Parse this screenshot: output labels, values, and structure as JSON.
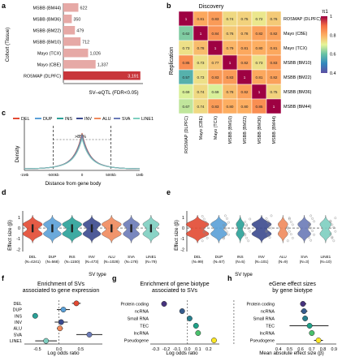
{
  "panels": {
    "a": "a",
    "b": "b",
    "c": "c",
    "d": "d",
    "e": "e",
    "f": "f",
    "g": "g",
    "h": "h"
  },
  "chart_data": [
    {
      "id": "a",
      "type": "bar",
      "orientation": "horizontal",
      "ylabel": "Cohort (Tissue)",
      "xlabel": "SV–eQTL (FDR<0.05)",
      "categories": [
        "MSBB (BM44)",
        "MSBB (BM36)",
        "MSBB (BM22)",
        "MSBB (BM10)",
        "Mayo (TCX)",
        "Mayo (CBE)",
        "ROSMAP (DLPFC)"
      ],
      "values": [
        622,
        350,
        479,
        712,
        1026,
        1337,
        3191
      ],
      "value_labels": [
        "622",
        "350",
        "479",
        "712",
        "1,026",
        "1,337",
        "3,191"
      ],
      "colors": [
        "#e6a9a6",
        "#e6a9a6",
        "#e6a9a6",
        "#e6a9a6",
        "#e6a9a6",
        "#e6a9a6",
        "#c8363b"
      ]
    },
    {
      "id": "b",
      "type": "heatmap",
      "title": "Discovery",
      "ylabel": "Replication",
      "rows": [
        "ROSMAP (DLPFC)",
        "Mayo (CBE)",
        "Mayo (TCX)",
        "MSBB (BM10)",
        "MSBB (BM22)",
        "MSBB (BM36)",
        "MSBB (BM44)"
      ],
      "cols": [
        "ROSMAP (DLPFC)",
        "Mayo (CBE)",
        "Mayo (TCX)",
        "MSBB (BM10)",
        "MSBB (BM22)",
        "MSBB (BM36)",
        "MSBB (BM44)"
      ],
      "values": [
        [
          1,
          0.81,
          0.83,
          0.74,
          0.75,
          0.72,
          0.76
        ],
        [
          0.62,
          1,
          0.84,
          0.76,
          0.78,
          0.82,
          0.82
        ],
        [
          0.73,
          0.78,
          1,
          0.79,
          0.81,
          0.8,
          0.81
        ],
        [
          0.85,
          0.73,
          0.77,
          1,
          0.82,
          0.73,
          0.83
        ],
        [
          0.57,
          0.73,
          0.83,
          0.83,
          1,
          0.81,
          0.82
        ],
        [
          0.69,
          0.74,
          0.69,
          0.78,
          0.82,
          1,
          0.75
        ],
        [
          0.67,
          0.74,
          0.83,
          0.8,
          0.8,
          0.85,
          1
        ]
      ],
      "colorbar": {
        "label": "π1",
        "ticks": [
          "1",
          "0.8",
          "0.6",
          "0.4"
        ]
      }
    },
    {
      "id": "c",
      "type": "line",
      "ylabel": "Density",
      "xlabel": "Distance from gene body",
      "legend": [
        "DEL",
        "DUP",
        "INS",
        "INV",
        "ALU",
        "SVA",
        "LINE1"
      ],
      "colors": [
        "#e34a33",
        "#5aa0d8",
        "#2aa198",
        "#3b4a8f",
        "#f08a5d",
        "#6b7bb8",
        "#7ecfc0"
      ],
      "xticks": [
        "-1Mb",
        "-500kb",
        "0",
        "500kb",
        "1Mb"
      ],
      "annotation": ">85%"
    },
    {
      "id": "d",
      "type": "violin",
      "ylabel": "Effect size (β)",
      "xlabel": "SV type",
      "categories": [
        "DEL",
        "DUP",
        "INS",
        "INV",
        "ALU",
        "SVA",
        "LINE1"
      ],
      "category_labels": [
        "DEL\n(N=4241)",
        "DUP\n(N=568)",
        "INS\n(N=1150)",
        "INV\n(N=473)",
        "ALU\n(N=1028)",
        "SVA\n(N=178)",
        "LINE1\n(N=79)"
      ],
      "yticks": [
        "1",
        "0",
        "-1",
        "-2"
      ],
      "ylim": [
        -2,
        1.5
      ]
    },
    {
      "id": "e",
      "type": "violin",
      "ylabel": "Effect size (β)",
      "xlabel": "SV type",
      "categories": [
        "DEL",
        "DUP",
        "INS",
        "INV",
        "ALU",
        "SVA",
        "LINE1"
      ],
      "category_labels": [
        "DEL\n(N=99)",
        "DUP\n(N=57)",
        "INS\n(N=5)",
        "INV\n(N=101)",
        "ALU\n(N=9)",
        "SVA\n(N=3)",
        "LINE1\n(N=10)"
      ],
      "yticks": [
        "1",
        "0",
        "-1",
        "-2"
      ],
      "ylim": [
        -2,
        1.5
      ]
    },
    {
      "id": "f",
      "type": "scatter",
      "title": "Enrichment of SVs\nassociated to gene expression",
      "xlabel": "Log odds ratio",
      "categories": [
        "DEL",
        "DUP",
        "INS",
        "INV",
        "ALU",
        "SVA",
        "LINE1"
      ],
      "values": [
        0.4,
        0.1,
        -0.55,
        0.05,
        0.02,
        0.7,
        -0.3
      ],
      "ci": [
        [
          0.3,
          0.5
        ],
        [
          -0.05,
          0.25
        ],
        [
          -0.6,
          -0.5
        ],
        [
          -0.1,
          0.2
        ],
        [
          -0.05,
          0.09
        ],
        [
          0.4,
          1.0
        ],
        [
          -0.55,
          -0.05
        ]
      ],
      "colors": [
        "#e34a33",
        "#5aa0d8",
        "#2aa198",
        "#3b4a8f",
        "#f08a5d",
        "#6b7bb8",
        "#7ecfc0"
      ],
      "xticks": [
        "-0.5",
        "0.0",
        "0.5"
      ],
      "xlim": [
        -0.8,
        1.0
      ]
    },
    {
      "id": "g",
      "type": "scatter",
      "title": "Enrichment of gene biotype\nassociated to SVs",
      "xlabel": "Log odds ratio",
      "categories": [
        "Protein coding",
        "ncRNA",
        "Small RNA",
        "TEC",
        "lncRNA",
        "Pseudogene"
      ],
      "values": [
        -0.22,
        -0.05,
        0.02,
        0.08,
        0.1,
        0.25
      ],
      "colors": [
        "#46327e",
        "#365c8d",
        "#277f8e",
        "#1fa187",
        "#4ac16d",
        "#fde725"
      ],
      "xticks": [
        "-0.3",
        "-0.2",
        "-0.1",
        "0.0",
        "0.1",
        "0.2"
      ],
      "xlim": [
        -0.35,
        0.3
      ]
    },
    {
      "id": "h",
      "type": "scatter",
      "title": "eGene effect sizes\nby gene biotype",
      "xlabel": "Mean absolute effect size (β)",
      "categories": [
        "Protein coding",
        "ncRNA",
        "Small RNA",
        "TEC",
        "lncRNA",
        "Pseudogene"
      ],
      "values": [
        0.62,
        0.63,
        0.64,
        0.68,
        0.7,
        0.76
      ],
      "ci": [
        [
          0.6,
          0.65
        ],
        [
          0.6,
          0.66
        ],
        [
          0.62,
          0.66
        ],
        [
          0.5,
          0.85
        ],
        [
          0.68,
          0.72
        ],
        [
          0.72,
          0.8
        ]
      ],
      "colors": [
        "#46327e",
        "#365c8d",
        "#277f8e",
        "#1fa187",
        "#4ac16d",
        "#fde725"
      ],
      "xticks": [
        "0.4",
        "0.5",
        "0.6",
        "0.7",
        "0.8",
        "0.9"
      ],
      "xlim": [
        0.38,
        0.92
      ]
    }
  ]
}
